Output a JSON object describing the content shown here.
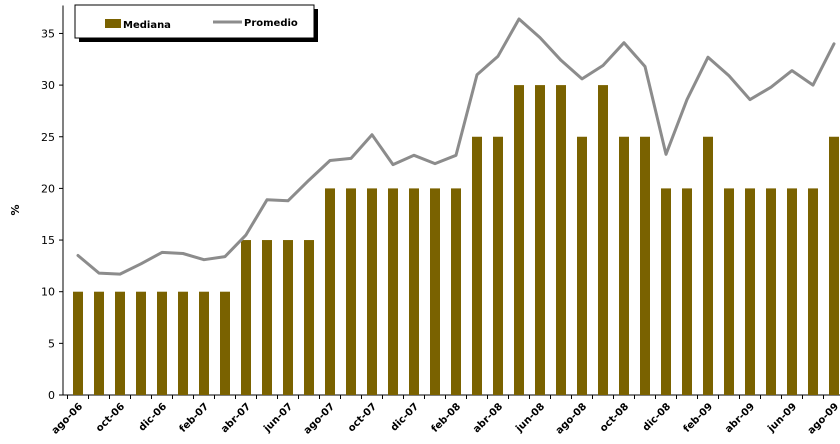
{
  "chart_data": {
    "type": "bar",
    "ylabel": "%",
    "ylim": [
      0,
      35
    ],
    "yticks": [
      0,
      5,
      10,
      15,
      20,
      25,
      30,
      35
    ],
    "grid": false,
    "legend_position": "top-left",
    "x": [
      "ago-06",
      "sep-06",
      "oct-06",
      "nov-06",
      "dic-06",
      "ene-07",
      "feb-07",
      "mar-07",
      "abr-07",
      "may-07",
      "jun-07",
      "jul-07",
      "ago-07",
      "sep-07",
      "oct-07",
      "nov-07",
      "dic-07",
      "ene-08",
      "feb-08",
      "mar-08",
      "abr-08",
      "may-08",
      "jun-08",
      "jul-08",
      "ago-08",
      "sep-08",
      "oct-08",
      "nov-08",
      "dic-08",
      "ene-09",
      "feb-09",
      "mar-09",
      "abr-09",
      "may-09",
      "jun-09",
      "jul-09",
      "ago-09"
    ],
    "x_tick_labels": [
      "ago-06",
      "oct-06",
      "dic-06",
      "feb-07",
      "abr-07",
      "jun-07",
      "ago-07",
      "oct-07",
      "dic-07",
      "feb-08",
      "abr-08",
      "jun-08",
      "ago-08",
      "oct-08",
      "dic-08",
      "feb-09",
      "abr-09",
      "jun-09",
      "ago-09"
    ],
    "series": [
      {
        "name": "Mediana",
        "type": "bar",
        "color": "#7a6200",
        "values": [
          10,
          10,
          10,
          10,
          10,
          10,
          10,
          10,
          15,
          15,
          15,
          15,
          20,
          20,
          20,
          20,
          20,
          20,
          20,
          25,
          25,
          30,
          30,
          30,
          25,
          30,
          25,
          25,
          20,
          20,
          25,
          20,
          20,
          20,
          20,
          20,
          25
        ]
      },
      {
        "name": "Promedio",
        "type": "line",
        "color": "#8c8c8c",
        "values": [
          13.5,
          11.8,
          11.7,
          12.7,
          13.8,
          13.7,
          13.1,
          13.4,
          15.5,
          18.9,
          18.8,
          20.8,
          22.7,
          22.9,
          25.2,
          22.3,
          23.2,
          22.4,
          23.2,
          31.0,
          32.8,
          36.4,
          34.6,
          32.4,
          30.6,
          31.9,
          34.1,
          31.8,
          23.3,
          28.6,
          32.7,
          30.9,
          28.6,
          29.8,
          31.4,
          30.0,
          34.0
        ]
      }
    ]
  }
}
